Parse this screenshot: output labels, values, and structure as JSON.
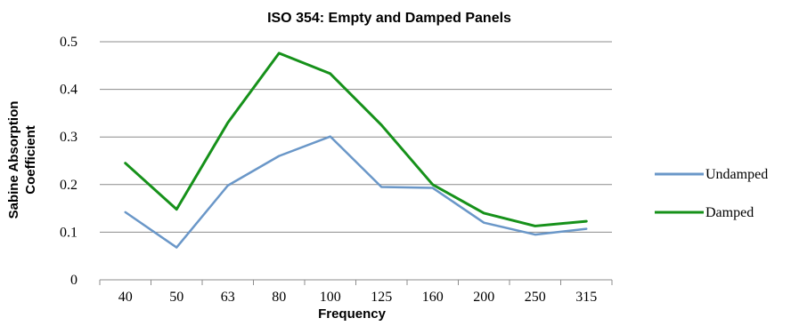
{
  "chart_data": {
    "type": "line",
    "title": "ISO 354: Empty and Damped Panels",
    "xlabel": "Frequency",
    "ylabel_lines": [
      "Sabine Absorption",
      "Coefficient"
    ],
    "categories": [
      "40",
      "50",
      "63",
      "80",
      "100",
      "125",
      "160",
      "200",
      "250",
      "315"
    ],
    "ylim": [
      0,
      0.5
    ],
    "yticks": [
      "0",
      "0.1",
      "0.2",
      "0.3",
      "0.4",
      "0.5"
    ],
    "grid": "horizontal",
    "legend_position": "right",
    "series": [
      {
        "name": "Undamped",
        "color": "#6a97c8",
        "values": [
          0.142,
          0.068,
          0.198,
          0.26,
          0.301,
          0.195,
          0.193,
          0.12,
          0.095,
          0.107
        ]
      },
      {
        "name": "Damped",
        "color": "#16911a",
        "values": [
          0.245,
          0.148,
          0.33,
          0.476,
          0.433,
          0.325,
          0.2,
          0.14,
          0.113,
          0.123
        ]
      }
    ]
  }
}
